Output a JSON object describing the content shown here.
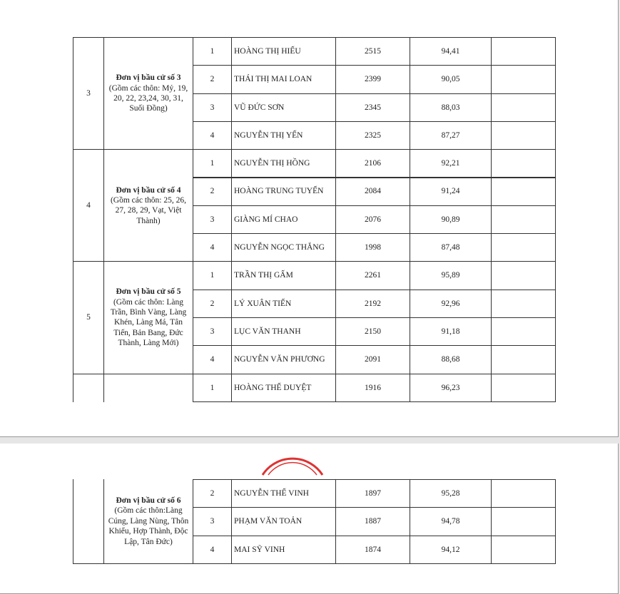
{
  "units": [
    {
      "no": "3",
      "name": "Đơn vị bầu cử số 3",
      "desc": "(Gồm các thôn: Mỷ, 19, 20, 22, 23,24, 30, 31, Suối Đồng)",
      "candidates": [
        [
          "1",
          "HOÀNG THỊ HIẾU",
          "2515",
          "94,41"
        ],
        [
          "2",
          "THÁI THỊ MAI LOAN",
          "2399",
          "90,05"
        ],
        [
          "3",
          "VŨ ĐỨC SƠN",
          "2345",
          "88,03"
        ],
        [
          "4",
          "NGUYỄN THỊ YẾN",
          "2325",
          "87,27"
        ]
      ]
    },
    {
      "no": "4",
      "name": "Đơn vị bầu cử số 4",
      "desc": "(Gồm các thôn: 25, 26, 27, 28, 29, Vạt, Việt Thành)",
      "candidates": [
        [
          "1",
          "NGUYỄN THỊ HỒNG",
          "2106",
          "92,21"
        ],
        [
          "2",
          "HOÀNG TRUNG TUYẾN",
          "2084",
          "91,24"
        ],
        [
          "3",
          "GIÀNG MÍ CHAO",
          "2076",
          "90,89"
        ],
        [
          "4",
          "NGUYỄN NGỌC THẮNG",
          "1998",
          "87,48"
        ]
      ]
    },
    {
      "no": "5",
      "name": "Đơn vị bầu cử số 5",
      "desc": "(Gồm các thôn: Làng Trần, Bình Vàng, Làng Khén, Làng Má, Tân Tiến, Bản Bang, Đức Thành, Làng Mới)",
      "candidates": [
        [
          "1",
          "TRẦN THỊ GẤM",
          "2261",
          "95,89"
        ],
        [
          "2",
          "LÝ XUÂN TIẾN",
          "2192",
          "92,96"
        ],
        [
          "3",
          "LỤC VĂN THANH",
          "2150",
          "91,18"
        ],
        [
          "4",
          "NGUYỄN VĂN PHƯƠNG",
          "2091",
          "88,68"
        ]
      ]
    },
    {
      "name": "Đơn vị bầu cử số 6",
      "desc": "(Gồm các thôn:Làng Cúng, Làng Nùng, Thôn Khiểu, Hợp Thành, Độc Lập, Tân Đức)",
      "candidates": [
        [
          "1",
          "HOÀNG THẾ DUYỆT",
          "1916",
          "96,23"
        ],
        [
          "2",
          "NGUYỄN THẾ VINH",
          "1897",
          "95,28"
        ],
        [
          "3",
          "PHẠM VĂN TOẢN",
          "1887",
          "94,78"
        ],
        [
          "4",
          "MAI SỸ VINH",
          "1874",
          "94,12"
        ]
      ]
    }
  ]
}
